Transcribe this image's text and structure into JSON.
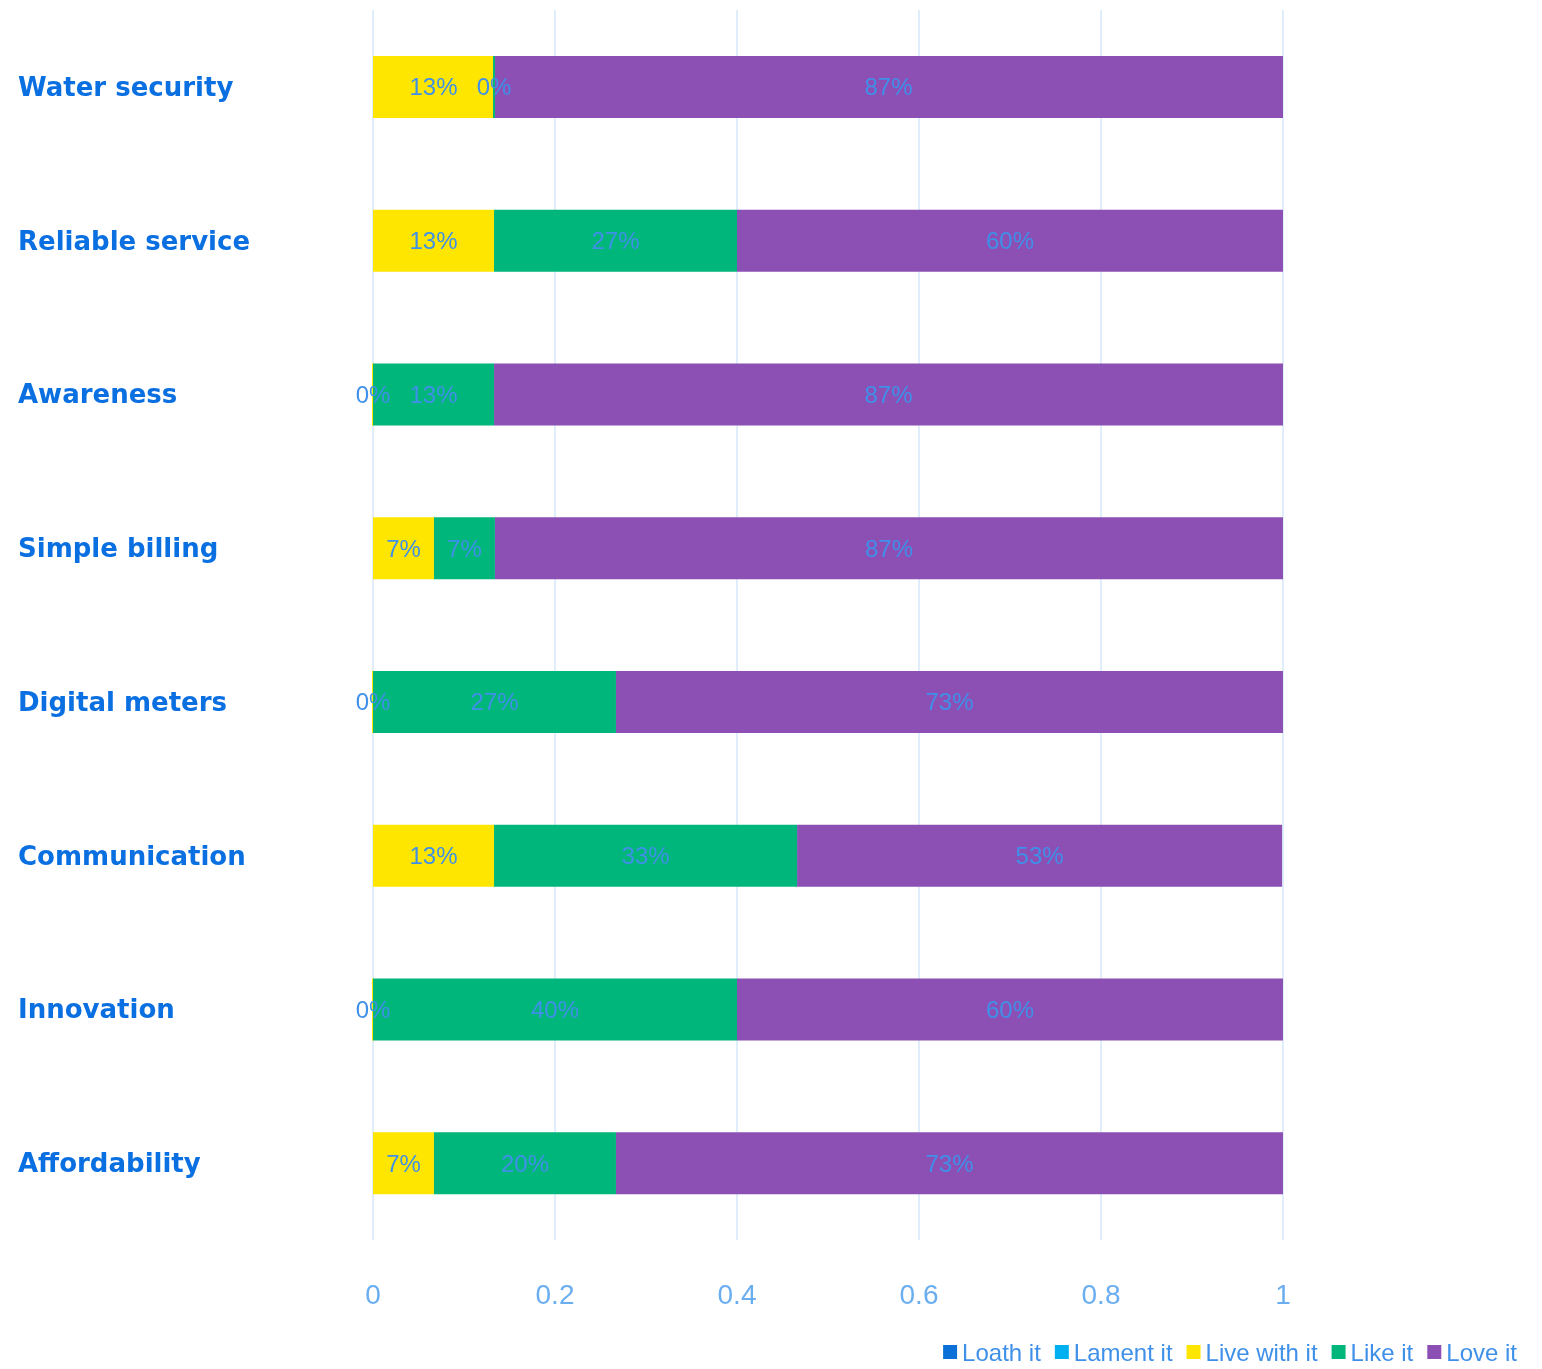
{
  "chart_data": {
    "type": "bar",
    "orientation": "horizontal",
    "stacked": true,
    "categories": [
      "Water security",
      "Reliable service",
      "Awareness",
      "Simple billing",
      "Digital meters",
      "Communication",
      "Innovation",
      "Affordability"
    ],
    "series": [
      {
        "name": "Loath it",
        "color": "#0b6fd8",
        "values": [
          0,
          0,
          0,
          0,
          0,
          0,
          0,
          0
        ],
        "value_labels": [
          null,
          null,
          null,
          null,
          null,
          null,
          null,
          null
        ]
      },
      {
        "name": "Lament it",
        "color": "#00b0f0",
        "values": [
          0,
          0,
          0,
          0,
          0,
          0,
          0,
          0
        ],
        "value_labels": [
          null,
          null,
          null,
          null,
          null,
          null,
          null,
          null
        ]
      },
      {
        "name": "Live with it",
        "color": "#ffe600",
        "values": [
          0.133,
          0.133,
          0,
          0.067,
          0,
          0.133,
          0,
          0.067
        ],
        "value_labels": [
          "13%",
          "13%",
          "0%",
          "7%",
          "0%",
          "13%",
          "0%",
          "7%"
        ]
      },
      {
        "name": "Like it",
        "color": "#00b67a",
        "values": [
          0,
          0.267,
          0.133,
          0.067,
          0.267,
          0.333,
          0.4,
          0.2
        ],
        "value_labels": [
          "0%",
          "27%",
          "13%",
          "7%",
          "27%",
          "33%",
          "40%",
          "20%"
        ]
      },
      {
        "name": "Love it",
        "color": "#8c4fb4",
        "values": [
          0.867,
          0.6,
          0.867,
          0.866,
          0.733,
          0.533,
          0.6,
          0.733
        ],
        "value_labels": [
          "87%",
          "60%",
          "87%",
          "87%",
          "73%",
          "53%",
          "60%",
          "73%"
        ]
      }
    ],
    "xlim": [
      0,
      1
    ],
    "xticks": [
      0,
      0.2,
      0.4,
      0.6,
      0.8,
      1
    ],
    "grid": "x",
    "legend": "bottom right"
  }
}
